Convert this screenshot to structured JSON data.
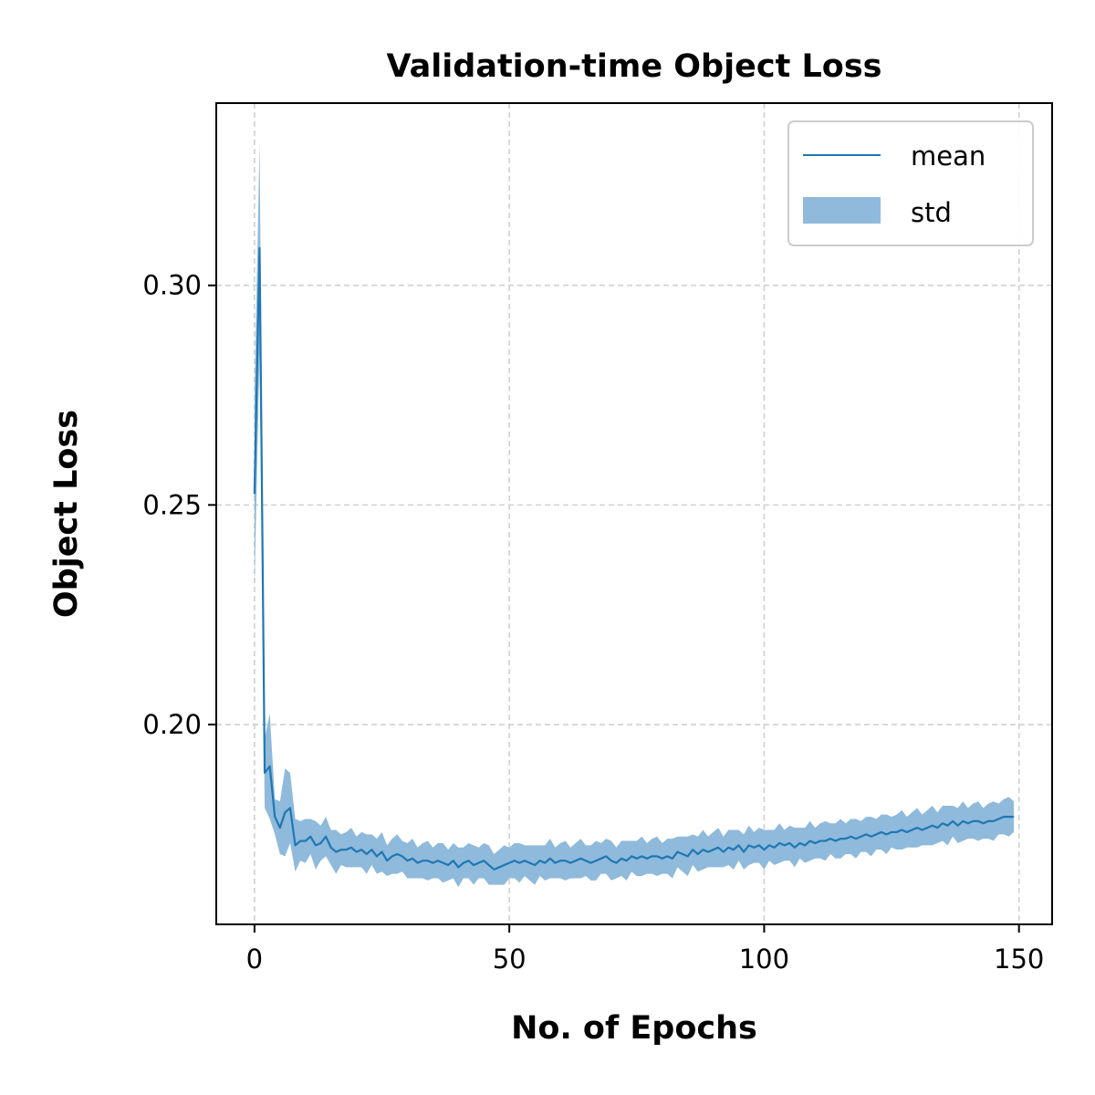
{
  "chart_data": {
    "type": "line",
    "title": "Validation-time Object Loss",
    "xlabel": "No. of Epochs",
    "ylabel": "Object Loss",
    "xlim": [
      -7.5,
      156.5
    ],
    "ylim": [
      0.1545,
      0.3415
    ],
    "xticks": [
      0,
      50,
      100,
      150
    ],
    "xtick_labels": [
      "0",
      "50",
      "100",
      "150"
    ],
    "yticks": [
      0.2,
      0.25,
      0.3
    ],
    "ytick_labels": [
      "0.20",
      "0.25",
      "0.30"
    ],
    "grid": true,
    "legend": {
      "placement": "top-right",
      "entries": [
        {
          "label": "mean",
          "kind": "line"
        },
        {
          "label": "std",
          "kind": "band"
        }
      ]
    },
    "colors": {
      "mean": "#1f77b4",
      "std": "#8fbadb"
    },
    "series": [
      {
        "name": "mean",
        "x": [
          0,
          1,
          2,
          3,
          4,
          5,
          6,
          7,
          8,
          9,
          10,
          11,
          12,
          13,
          14,
          15,
          16,
          17,
          18,
          19,
          20,
          21,
          22,
          23,
          24,
          25,
          26,
          27,
          28,
          29,
          30,
          31,
          32,
          33,
          34,
          35,
          36,
          37,
          38,
          39,
          40,
          41,
          42,
          43,
          44,
          45,
          46,
          47,
          48,
          49,
          50,
          51,
          52,
          53,
          54,
          55,
          56,
          57,
          58,
          59,
          60,
          61,
          62,
          63,
          64,
          65,
          66,
          67,
          68,
          69,
          70,
          71,
          72,
          73,
          74,
          75,
          76,
          77,
          78,
          79,
          80,
          81,
          82,
          83,
          84,
          85,
          86,
          87,
          88,
          89,
          90,
          91,
          92,
          93,
          94,
          95,
          96,
          97,
          98,
          99,
          100,
          101,
          102,
          103,
          104,
          105,
          106,
          107,
          108,
          109,
          110,
          111,
          112,
          113,
          114,
          115,
          116,
          117,
          118,
          119,
          120,
          121,
          122,
          123,
          124,
          125,
          126,
          127,
          128,
          129,
          130,
          131,
          132,
          133,
          134,
          135,
          136,
          137,
          138,
          139,
          140,
          141,
          142,
          143,
          144,
          145,
          146,
          147,
          148,
          149
        ],
        "values": [
          0.2525,
          0.3085,
          0.189,
          0.1905,
          0.179,
          0.1765,
          0.18,
          0.181,
          0.1725,
          0.1735,
          0.1735,
          0.1745,
          0.1725,
          0.173,
          0.1745,
          0.172,
          0.171,
          0.1715,
          0.1715,
          0.172,
          0.171,
          0.1715,
          0.1705,
          0.1715,
          0.17,
          0.171,
          0.169,
          0.17,
          0.1705,
          0.17,
          0.169,
          0.1695,
          0.1685,
          0.169,
          0.169,
          0.1685,
          0.169,
          0.1685,
          0.168,
          0.169,
          0.1675,
          0.1685,
          0.169,
          0.168,
          0.1685,
          0.169,
          0.168,
          0.167,
          0.1675,
          0.168,
          0.1685,
          0.169,
          0.1685,
          0.169,
          0.1685,
          0.168,
          0.169,
          0.1685,
          0.1695,
          0.1685,
          0.169,
          0.169,
          0.1685,
          0.169,
          0.1695,
          0.169,
          0.1685,
          0.169,
          0.1695,
          0.17,
          0.169,
          0.1685,
          0.1695,
          0.169,
          0.17,
          0.1695,
          0.17,
          0.1695,
          0.17,
          0.17,
          0.1695,
          0.17,
          0.1695,
          0.171,
          0.1705,
          0.17,
          0.1715,
          0.1705,
          0.1715,
          0.171,
          0.1715,
          0.172,
          0.171,
          0.172,
          0.1715,
          0.1725,
          0.171,
          0.1725,
          0.172,
          0.1725,
          0.1715,
          0.1725,
          0.172,
          0.173,
          0.1725,
          0.173,
          0.172,
          0.173,
          0.1725,
          0.1735,
          0.173,
          0.1735,
          0.1735,
          0.174,
          0.1735,
          0.174,
          0.174,
          0.1745,
          0.174,
          0.1745,
          0.175,
          0.1745,
          0.175,
          0.1755,
          0.175,
          0.1755,
          0.1755,
          0.176,
          0.1755,
          0.176,
          0.1765,
          0.176,
          0.1765,
          0.177,
          0.1765,
          0.1775,
          0.177,
          0.178,
          0.177,
          0.178,
          0.1775,
          0.178,
          0.178,
          0.1775,
          0.178,
          0.178,
          0.1785,
          0.179,
          0.179,
          0.179
        ]
      },
      {
        "name": "std",
        "values": [
          0.022,
          0.024,
          0.008,
          0.012,
          0.004,
          0.006,
          0.01,
          0.008,
          0.006,
          0.0045,
          0.005,
          0.004,
          0.0055,
          0.004,
          0.0045,
          0.004,
          0.005,
          0.0035,
          0.004,
          0.0045,
          0.0035,
          0.004,
          0.0045,
          0.0035,
          0.004,
          0.0045,
          0.0035,
          0.004,
          0.0045,
          0.0035,
          0.004,
          0.0045,
          0.0035,
          0.004,
          0.0045,
          0.0035,
          0.004,
          0.0045,
          0.0035,
          0.004,
          0.0045,
          0.0035,
          0.004,
          0.0045,
          0.0035,
          0.004,
          0.0045,
          0.0035,
          0.004,
          0.0045,
          0.0035,
          0.004,
          0.0045,
          0.0035,
          0.004,
          0.0045,
          0.0035,
          0.004,
          0.0045,
          0.0035,
          0.004,
          0.0045,
          0.0035,
          0.004,
          0.0045,
          0.0035,
          0.004,
          0.0045,
          0.0035,
          0.004,
          0.0045,
          0.0035,
          0.004,
          0.0045,
          0.0035,
          0.004,
          0.0045,
          0.0035,
          0.004,
          0.0045,
          0.0035,
          0.004,
          0.0045,
          0.0035,
          0.004,
          0.0045,
          0.0035,
          0.004,
          0.0045,
          0.0035,
          0.004,
          0.0045,
          0.0035,
          0.004,
          0.0045,
          0.0035,
          0.004,
          0.0045,
          0.0035,
          0.004,
          0.0045,
          0.0035,
          0.004,
          0.0045,
          0.0035,
          0.004,
          0.0045,
          0.0035,
          0.004,
          0.0045,
          0.0035,
          0.004,
          0.0045,
          0.0035,
          0.004,
          0.0045,
          0.0035,
          0.004,
          0.0045,
          0.0035,
          0.004,
          0.0045,
          0.0035,
          0.004,
          0.0045,
          0.0035,
          0.004,
          0.0045,
          0.0035,
          0.004,
          0.0045,
          0.0035,
          0.004,
          0.0045,
          0.0035,
          0.004,
          0.0045,
          0.0035,
          0.004,
          0.0045,
          0.0035,
          0.004,
          0.0045,
          0.0035,
          0.004,
          0.0045,
          0.0035,
          0.004,
          0.0045,
          0.0035,
          0.004
        ]
      }
    ]
  }
}
